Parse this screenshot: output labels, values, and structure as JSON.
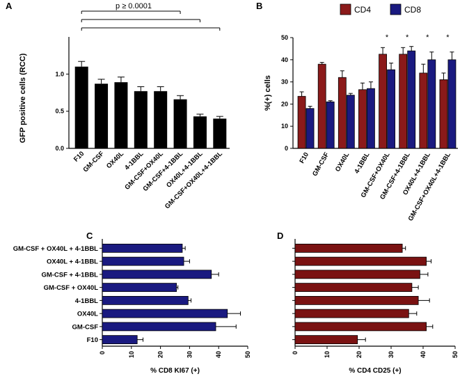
{
  "chart_data": [
    {
      "panel": "A",
      "type": "bar",
      "ylabel": "GFP positive cells (RCC)",
      "categories": [
        "F10",
        "GM-CSF",
        "OX40L",
        "4-1BBL",
        "GM-CSF+OX40L",
        "GM-CSF+4-1BBL",
        "OX40L+4-1BBL",
        "GM-CSF+OX40L+4-1BBL"
      ],
      "values": [
        1.1,
        0.87,
        0.89,
        0.77,
        0.77,
        0.66,
        0.43,
        0.4
      ],
      "errors": [
        0.07,
        0.06,
        0.07,
        0.06,
        0.06,
        0.05,
        0.03,
        0.03
      ],
      "ylim": [
        0,
        1.5
      ],
      "yticks": [
        "0.0",
        "0.5",
        "1.0"
      ],
      "bar_color": "#000000",
      "significance": {
        "label": "p ≥ 0.0001",
        "brackets": [
          [
            0,
            5
          ],
          [
            0,
            6
          ],
          [
            0,
            7
          ]
        ]
      }
    },
    {
      "panel": "B",
      "type": "bar",
      "ylabel": "%(+) cells",
      "categories": [
        "F10",
        "GM-CSF",
        "OX40L",
        "4-1BBL",
        "GM-CSF+OX40L",
        "GM-CSF+4-1BBL",
        "OX40L+4-1BBL",
        "GM-CSF+OX40L+4-1BBL"
      ],
      "series": [
        {
          "name": "CD4",
          "color": "#8b1a1a",
          "values": [
            23.5,
            38,
            32,
            26.5,
            42.5,
            42.5,
            34,
            31
          ],
          "errors": [
            2,
            0.8,
            3,
            3,
            3,
            3,
            4,
            3
          ]
        },
        {
          "name": "CD8",
          "color": "#1a1a80",
          "values": [
            18,
            21,
            24,
            27,
            35.5,
            44,
            40,
            40
          ],
          "errors": [
            1,
            0.5,
            0.8,
            3,
            3,
            2,
            3.5,
            3.5
          ]
        }
      ],
      "ylim": [
        0,
        50
      ],
      "yticks": [
        "0",
        "10",
        "20",
        "30",
        "40",
        "50"
      ],
      "star_label": "*",
      "stars": [
        4,
        5,
        6,
        7
      ]
    },
    {
      "panel": "C",
      "type": "hbar",
      "xlabel": "% CD8 KI67 (+)",
      "categories": [
        "GM-CSF + OX40L + 4-1BBL",
        "OX40L + 4-1BBL",
        "GM-CSF + 4-1BBL",
        "GM-CSF + OX40L",
        "4-1BBL",
        "OX40L",
        "GM-CSF",
        "F10"
      ],
      "values": [
        27.5,
        28,
        37.5,
        25.5,
        29.5,
        43,
        39,
        12
      ],
      "errors": [
        1,
        2,
        2.5,
        0.5,
        1,
        4.5,
        7,
        2
      ],
      "xlim": [
        0,
        50
      ],
      "xticks": [
        "0",
        "10",
        "20",
        "30",
        "40",
        "50"
      ],
      "bar_color": "#1a1a80"
    },
    {
      "panel": "D",
      "type": "hbar",
      "xlabel": "% CD4 CD25 (+)",
      "categories": [
        "GM-CSF + OX40L + 4-1BBL",
        "OX40L + 4-1BBL",
        "GM-CSF + 4-1BBL",
        "GM-CSF + OX40L",
        "4-1BBL",
        "OX40L",
        "GM-CSF",
        "F10"
      ],
      "values": [
        33.5,
        41,
        39,
        36.5,
        38.5,
        35.5,
        41,
        19.5
      ],
      "errors": [
        1,
        1.5,
        2.5,
        2,
        3.5,
        2.5,
        2,
        2.5
      ],
      "xlim": [
        0,
        50
      ],
      "xticks": [
        "0",
        "10",
        "20",
        "30",
        "40",
        "50"
      ],
      "bar_color": "#7a1212"
    }
  ]
}
